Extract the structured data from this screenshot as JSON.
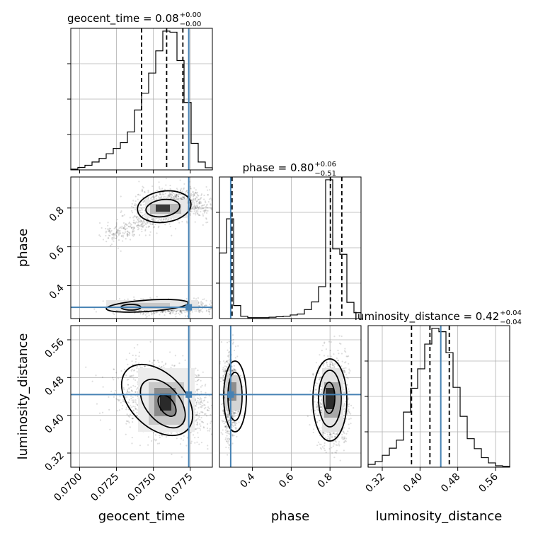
{
  "chart_data": {
    "type": "corner",
    "parameters": [
      "geocent_time",
      "phase",
      "luminosity_distance"
    ],
    "truth": {
      "geocent_time": 0.0774,
      "phase": 0.288,
      "luminosity_distance": 0.444
    },
    "titles": [
      {
        "param": "geocent_time",
        "text": "geocent_time = 0.08",
        "sup": "+0.00",
        "sub": "−0.00"
      },
      {
        "param": "phase",
        "text": "phase = 0.80",
        "sup": "+0.06",
        "sub": "−0.51"
      },
      {
        "param": "luminosity_distance",
        "text": "luminosity_distance = 0.42",
        "sup": "+0.04",
        "sub": "−0.04"
      }
    ],
    "axis_labels": {
      "x": [
        "geocent_time",
        "phase",
        "luminosity_distance"
      ],
      "y": [
        "phase",
        "luminosity_distance"
      ]
    },
    "axes": {
      "geocent_time": {
        "range": [
          0.0694,
          0.079
        ],
        "ticks": [
          0.07,
          0.0725,
          0.075,
          0.0775
        ],
        "tick_labels": [
          "0.0700",
          "0.0725",
          "0.0750",
          "0.0775"
        ]
      },
      "phase": {
        "range": [
          0.23,
          0.96
        ],
        "ticks": [
          0.4,
          0.6,
          0.8
        ],
        "tick_labels": [
          "0.4",
          "0.6",
          "0.8"
        ]
      },
      "luminosity_distance": {
        "range": [
          0.29,
          0.59
        ],
        "ticks": [
          0.32,
          0.4,
          0.48,
          0.56
        ],
        "tick_labels": [
          "0.32",
          "0.40",
          "0.48",
          "0.56"
        ]
      }
    },
    "histograms": {
      "geocent_time": {
        "bins": [
          0.0694,
          0.079
        ],
        "counts": [
          0.2,
          0.7,
          1.3,
          2.2,
          3.2,
          4.5,
          6.0,
          7.6,
          10.6,
          16.7,
          21.4,
          27.0,
          33.2,
          38.7,
          38.4,
          30.5,
          18.8,
          7.4,
          2.2,
          0.6
        ],
        "quantiles": [
          0.0742,
          0.0759,
          0.077
        ]
      },
      "phase": {
        "bins": [
          0.23,
          0.96
        ],
        "counts": [
          14.6,
          22.2,
          2.9,
          0.5,
          0.2,
          0.2,
          0.2,
          0.3,
          0.4,
          0.5,
          0.8,
          1.0,
          2.0,
          3.7,
          7.1,
          30.9,
          15.5,
          14.3,
          3.6,
          1.3
        ],
        "quantiles": [
          0.295,
          0.802,
          0.861
        ]
      },
      "luminosity_distance": {
        "bins": [
          0.29,
          0.59
        ],
        "counts": [
          0.6,
          1.2,
          2.5,
          4.0,
          5.7,
          11.6,
          16.6,
          20.7,
          25.9,
          29.2,
          28.5,
          24.1,
          16.8,
          10.7,
          6.0,
          3.9,
          2.0,
          0.9,
          0.3,
          0.2
        ],
        "quantiles": [
          0.382,
          0.421,
          0.462
        ]
      }
    },
    "grid": true
  }
}
